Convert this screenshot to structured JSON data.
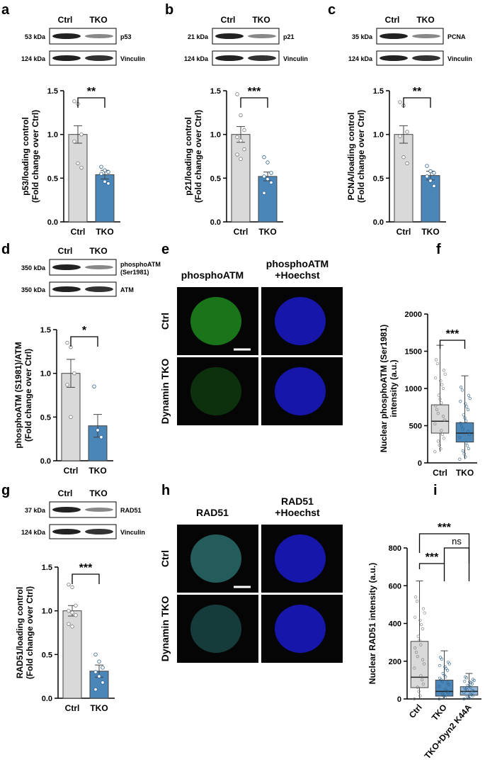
{
  "panels": [
    {
      "letter": "a",
      "blot": {
        "top": "Ctrl",
        "top2": "TKO",
        "bands": [
          {
            "kda": "53 kDa",
            "label": "p53"
          },
          {
            "kda": "124 kDa",
            "label": "Vinculin"
          }
        ]
      },
      "chart": {
        "type": "bar",
        "ylabel": [
          "p53/loading control",
          "(Fold change over Ctrl)"
        ],
        "ticks": [
          "0.0",
          "0.5",
          "1.0",
          "1.5"
        ],
        "ylim": [
          0,
          1.5
        ],
        "categories": [
          "Ctrl",
          "TKO"
        ],
        "values": [
          1.0,
          0.54
        ],
        "sem": [
          0.1,
          0.05
        ],
        "sig": "**",
        "points": [
          [
            1.38,
            1.35,
            1.0,
            0.92,
            0.67,
            0.62
          ],
          [
            0.63,
            0.59,
            0.57,
            0.55,
            0.46,
            0.44
          ]
        ]
      }
    },
    {
      "letter": "b",
      "blot": {
        "top": "Ctrl",
        "top2": "TKO",
        "bands": [
          {
            "kda": "21 kDa",
            "label": "p21"
          },
          {
            "kda": "124 kDa",
            "label": "Vinculin"
          }
        ]
      },
      "chart": {
        "type": "bar",
        "ylabel": [
          "p21/loading control",
          "(Fold change over Ctrl)"
        ],
        "ticks": [
          "0.0",
          "0.5",
          "1.0",
          "1.5"
        ],
        "ylim": [
          0,
          1.5
        ],
        "categories": [
          "Ctrl",
          "TKO"
        ],
        "values": [
          1.0,
          0.52
        ],
        "sem": [
          0.09,
          0.05
        ],
        "sig": "***",
        "points": [
          [
            1.46,
            1.22,
            1.05,
            0.97,
            0.93,
            0.83,
            0.77,
            0.72
          ],
          [
            0.74,
            0.68,
            0.56,
            0.52,
            0.49,
            0.45,
            0.33
          ]
        ]
      }
    },
    {
      "letter": "c",
      "blot": {
        "top": "Ctrl",
        "top2": "TKO",
        "bands": [
          {
            "kda": "35 kDa",
            "label": "PCNA"
          },
          {
            "kda": "124 kDa",
            "label": "Vinculin"
          }
        ]
      },
      "chart": {
        "type": "bar",
        "ylabel": [
          "PCNA/loading control",
          "(Fold change over Ctrl)"
        ],
        "ticks": [
          "0.0",
          "0.5",
          "1.0",
          "1.5"
        ],
        "ylim": [
          0,
          1.5
        ],
        "categories": [
          "Ctrl",
          "TKO"
        ],
        "values": [
          1.0,
          0.53
        ],
        "sem": [
          0.1,
          0.05
        ],
        "sig": "**",
        "points": [
          [
            1.37,
            1.33,
            1.03,
            0.98,
            0.74,
            0.67
          ],
          [
            0.64,
            0.58,
            0.56,
            0.52,
            0.47,
            0.41
          ]
        ]
      }
    },
    {
      "letter": "d",
      "blot": {
        "top": "Ctrl",
        "top2": "TKO",
        "bands": [
          {
            "kda": "350 kDa",
            "label": "phosphoATM",
            "label2": "(Ser1981)"
          },
          {
            "kda": "350 kDa",
            "label": "ATM"
          }
        ]
      },
      "chart": {
        "type": "bar",
        "ylabel": [
          "phosphoATM (S1981)/ATM",
          "(Fold change over Ctrl)"
        ],
        "ticks": [
          "0.0",
          "0.5",
          "1.0",
          "1.5"
        ],
        "ylim": [
          0,
          1.5
        ],
        "categories": [
          "Ctrl",
          "TKO"
        ],
        "values": [
          1.0,
          0.4
        ],
        "sem": [
          0.16,
          0.13
        ],
        "sig": "*",
        "points": [
          [
            1.35,
            1.3,
            1.0,
            0.87,
            0.5
          ],
          [
            0.85,
            0.35,
            0.27
          ]
        ]
      }
    },
    {
      "letter": "g",
      "blot": {
        "top": "Ctrl",
        "top2": "TKO",
        "bands": [
          {
            "kda": "37 kDa",
            "label": "RAD51"
          },
          {
            "kda": "124 kDa",
            "label": "Vinculin"
          }
        ]
      },
      "chart": {
        "type": "bar",
        "ylabel": [
          "RAD51/loading control",
          "(Fold change over Ctrl)"
        ],
        "ticks": [
          "0.0",
          "0.5",
          "1.0",
          "1.5"
        ],
        "ylim": [
          0,
          1.5
        ],
        "categories": [
          "Ctrl",
          "TKO"
        ],
        "values": [
          1.0,
          0.31
        ],
        "sem": [
          0.06,
          0.07
        ],
        "sig": "***",
        "points": [
          [
            1.3,
            1.27,
            1.06,
            1.0,
            0.98,
            0.95,
            0.85,
            0.82
          ],
          [
            0.5,
            0.42,
            0.35,
            0.3,
            0.25,
            0.18,
            0.1
          ]
        ]
      }
    }
  ],
  "micro_e": {
    "letter": "e",
    "cols": [
      "phosphoATM",
      "phosphoATM",
      "+Hoechst"
    ],
    "rows": [
      "Ctrl",
      "Dynamin TKO"
    ]
  },
  "micro_h": {
    "letter": "h",
    "cols": [
      "RAD51",
      "RAD51",
      "+Hoechst"
    ],
    "rows": [
      "Ctrl",
      "Dynamin TKO"
    ]
  },
  "chart_f": {
    "letter": "f",
    "type": "box",
    "ylabel": [
      "Nuclear phosphoATM (Ser1981)",
      "intensity (a.u.)"
    ],
    "ticks": [
      "0",
      "500",
      "1000",
      "1500",
      "2000"
    ],
    "ylim": [
      0,
      2000
    ],
    "categories": [
      "Ctrl",
      "TKO"
    ],
    "sig": "***",
    "boxes": [
      {
        "min": 150,
        "q1": 400,
        "median": 560,
        "q3": 780,
        "max": 1580
      },
      {
        "min": 50,
        "q1": 280,
        "median": 400,
        "q3": 540,
        "max": 1170
      }
    ]
  },
  "chart_i": {
    "letter": "i",
    "type": "box",
    "ylabel": [
      "Nuclear RAD51 intensity (a.u.)"
    ],
    "ticks": [
      "0",
      "200",
      "400",
      "600",
      "800"
    ],
    "ylim": [
      0,
      800
    ],
    "categories": [
      "Ctrl",
      "TKO",
      "TKO+Dyn2 K44A"
    ],
    "sigs": [
      "***",
      "***",
      "ns"
    ],
    "boxes": [
      {
        "min": 0,
        "q1": 60,
        "median": 115,
        "q3": 305,
        "max": 625
      },
      {
        "min": 0,
        "q1": 15,
        "median": 40,
        "q3": 100,
        "max": 255
      },
      {
        "min": 0,
        "q1": 20,
        "median": 40,
        "q3": 65,
        "max": 135
      }
    ]
  },
  "colors": {
    "ctrl": "#d9d9d9",
    "tko": "#4a86b8",
    "tko3": "#8fb4d6"
  }
}
